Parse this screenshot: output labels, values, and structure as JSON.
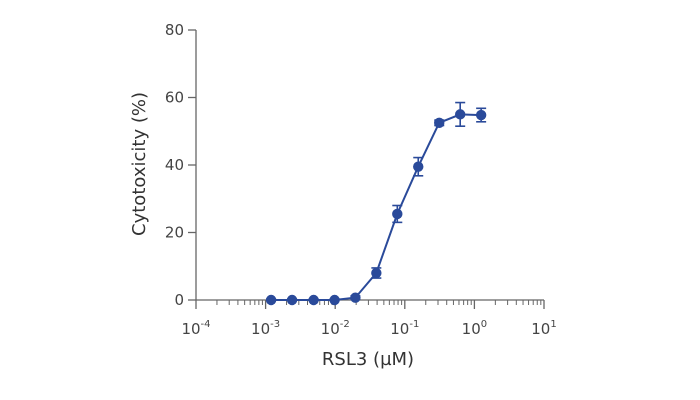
{
  "chart_data": {
    "type": "scatter",
    "xlabel": "RSL3 (µM)",
    "ylabel": "Cytotoxicity (%)",
    "xscale": "log",
    "xlim": [
      0.0001,
      10
    ],
    "ylim": [
      0,
      80
    ],
    "x_ticks": [
      {
        "base": "10",
        "exp": "-4"
      },
      {
        "base": "10",
        "exp": "-3"
      },
      {
        "base": "10",
        "exp": "-2"
      },
      {
        "base": "10",
        "exp": "-1"
      },
      {
        "base": "10",
        "exp": "0"
      },
      {
        "base": "10",
        "exp": "1"
      }
    ],
    "y_ticks": [
      "0",
      "20",
      "40",
      "60",
      "80"
    ],
    "grid": false,
    "legend": "none",
    "series": [
      {
        "color": "#2a4a9a",
        "connected": true,
        "points": [
          {
            "x": 0.0012,
            "y": 0.0,
            "err": 0.3
          },
          {
            "x": 0.0024,
            "y": 0.0,
            "err": 0.3
          },
          {
            "x": 0.0049,
            "y": 0.0,
            "err": 0.3
          },
          {
            "x": 0.0098,
            "y": 0.0,
            "err": 0.3
          },
          {
            "x": 0.0195,
            "y": 0.7,
            "err": 0.5
          },
          {
            "x": 0.039,
            "y": 8.0,
            "err": 1.5
          },
          {
            "x": 0.078,
            "y": 25.5,
            "err": 2.5
          },
          {
            "x": 0.156,
            "y": 39.5,
            "err": 2.7
          },
          {
            "x": 0.3125,
            "y": 52.5,
            "err": 0.8
          },
          {
            "x": 0.625,
            "y": 55.0,
            "err": 3.5
          },
          {
            "x": 1.25,
            "y": 54.8,
            "err": 2.0
          }
        ]
      }
    ]
  }
}
